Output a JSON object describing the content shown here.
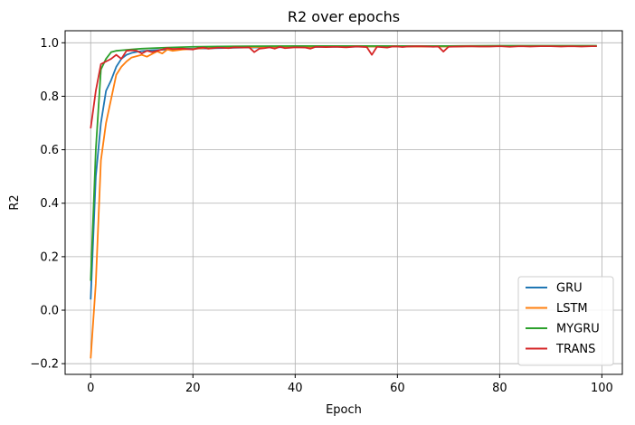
{
  "chart_data": {
    "type": "line",
    "title": "R2 over epochs",
    "xlabel": "Epoch",
    "ylabel": "R2",
    "xlim": [
      -5,
      104
    ],
    "ylim": [
      -0.24,
      1.045
    ],
    "xticks": [
      0,
      20,
      40,
      60,
      80,
      100
    ],
    "yticks": [
      -0.2,
      0.0,
      0.2,
      0.4,
      0.6,
      0.8,
      1.0
    ],
    "xtick_labels": [
      "0",
      "20",
      "40",
      "60",
      "80",
      "100"
    ],
    "ytick_labels": [
      "−0.2",
      "0.0",
      "0.2",
      "0.4",
      "0.6",
      "0.8",
      "1.0"
    ],
    "grid": true,
    "legend_position": "lower-right",
    "series": [
      {
        "name": "GRU",
        "color": "#1f77b4",
        "points": [
          [
            0,
            0.04
          ],
          [
            1,
            0.5
          ],
          [
            2,
            0.7
          ],
          [
            3,
            0.82
          ],
          [
            4,
            0.86
          ],
          [
            5,
            0.91
          ],
          [
            6,
            0.94
          ],
          [
            7,
            0.955
          ],
          [
            8,
            0.962
          ],
          [
            9,
            0.966
          ],
          [
            10,
            0.969
          ],
          [
            12,
            0.972
          ],
          [
            15,
            0.975
          ],
          [
            20,
            0.978
          ],
          [
            25,
            0.98
          ],
          [
            30,
            0.982
          ],
          [
            40,
            0.984
          ],
          [
            50,
            0.985
          ],
          [
            60,
            0.986
          ],
          [
            70,
            0.986
          ],
          [
            80,
            0.987
          ],
          [
            90,
            0.987
          ],
          [
            99,
            0.987
          ]
        ]
      },
      {
        "name": "LSTM",
        "color": "#ff7f0e",
        "points": [
          [
            0,
            -0.18
          ],
          [
            1,
            0.1
          ],
          [
            2,
            0.56
          ],
          [
            3,
            0.7
          ],
          [
            4,
            0.79
          ],
          [
            5,
            0.88
          ],
          [
            6,
            0.91
          ],
          [
            7,
            0.93
          ],
          [
            8,
            0.945
          ],
          [
            9,
            0.95
          ],
          [
            10,
            0.955
          ],
          [
            11,
            0.948
          ],
          [
            12,
            0.958
          ],
          [
            13,
            0.968
          ],
          [
            14,
            0.96
          ],
          [
            15,
            0.975
          ],
          [
            16,
            0.97
          ],
          [
            18,
            0.975
          ],
          [
            20,
            0.977
          ],
          [
            22,
            0.98
          ],
          [
            25,
            0.982
          ],
          [
            28,
            0.983
          ],
          [
            30,
            0.984
          ],
          [
            35,
            0.985
          ],
          [
            40,
            0.985
          ],
          [
            50,
            0.986
          ],
          [
            60,
            0.986
          ],
          [
            70,
            0.986
          ],
          [
            80,
            0.987
          ],
          [
            90,
            0.987
          ],
          [
            99,
            0.987
          ]
        ]
      },
      {
        "name": "MYGRU",
        "color": "#2ca02c",
        "points": [
          [
            0,
            0.11
          ],
          [
            1,
            0.6
          ],
          [
            2,
            0.9
          ],
          [
            3,
            0.94
          ],
          [
            4,
            0.965
          ],
          [
            5,
            0.97
          ],
          [
            6,
            0.972
          ],
          [
            8,
            0.975
          ],
          [
            10,
            0.978
          ],
          [
            15,
            0.982
          ],
          [
            20,
            0.985
          ],
          [
            25,
            0.986
          ],
          [
            30,
            0.987
          ],
          [
            40,
            0.988
          ],
          [
            50,
            0.988
          ],
          [
            60,
            0.988
          ],
          [
            70,
            0.988
          ],
          [
            80,
            0.989
          ],
          [
            90,
            0.989
          ],
          [
            99,
            0.989
          ]
        ]
      },
      {
        "name": "TRANS",
        "color": "#d62728",
        "points": [
          [
            0,
            0.68
          ],
          [
            1,
            0.82
          ],
          [
            2,
            0.92
          ],
          [
            3,
            0.93
          ],
          [
            4,
            0.94
          ],
          [
            5,
            0.955
          ],
          [
            6,
            0.94
          ],
          [
            7,
            0.97
          ],
          [
            8,
            0.972
          ],
          [
            9,
            0.97
          ],
          [
            10,
            0.96
          ],
          [
            11,
            0.97
          ],
          [
            12,
            0.965
          ],
          [
            13,
            0.97
          ],
          [
            14,
            0.975
          ],
          [
            15,
            0.98
          ],
          [
            16,
            0.977
          ],
          [
            18,
            0.978
          ],
          [
            20,
            0.975
          ],
          [
            21,
            0.98
          ],
          [
            22,
            0.982
          ],
          [
            23,
            0.978
          ],
          [
            25,
            0.982
          ],
          [
            27,
            0.98
          ],
          [
            28,
            0.983
          ],
          [
            30,
            0.982
          ],
          [
            31,
            0.983
          ],
          [
            32,
            0.965
          ],
          [
            33,
            0.978
          ],
          [
            34,
            0.98
          ],
          [
            35,
            0.983
          ],
          [
            36,
            0.978
          ],
          [
            37,
            0.985
          ],
          [
            38,
            0.98
          ],
          [
            40,
            0.983
          ],
          [
            42,
            0.982
          ],
          [
            43,
            0.978
          ],
          [
            44,
            0.985
          ],
          [
            46,
            0.984
          ],
          [
            48,
            0.985
          ],
          [
            50,
            0.983
          ],
          [
            52,
            0.986
          ],
          [
            54,
            0.984
          ],
          [
            55,
            0.955
          ],
          [
            56,
            0.985
          ],
          [
            58,
            0.982
          ],
          [
            59,
            0.986
          ],
          [
            60,
            0.986
          ],
          [
            61,
            0.984
          ],
          [
            62,
            0.986
          ],
          [
            64,
            0.987
          ],
          [
            66,
            0.986
          ],
          [
            67,
            0.985
          ],
          [
            68,
            0.986
          ],
          [
            69,
            0.967
          ],
          [
            70,
            0.985
          ],
          [
            72,
            0.986
          ],
          [
            74,
            0.987
          ],
          [
            76,
            0.986
          ],
          [
            78,
            0.986
          ],
          [
            80,
            0.987
          ],
          [
            82,
            0.985
          ],
          [
            84,
            0.987
          ],
          [
            86,
            0.986
          ],
          [
            88,
            0.987
          ],
          [
            90,
            0.987
          ],
          [
            92,
            0.986
          ],
          [
            94,
            0.987
          ],
          [
            96,
            0.986
          ],
          [
            98,
            0.987
          ],
          [
            99,
            0.987
          ]
        ]
      }
    ]
  }
}
